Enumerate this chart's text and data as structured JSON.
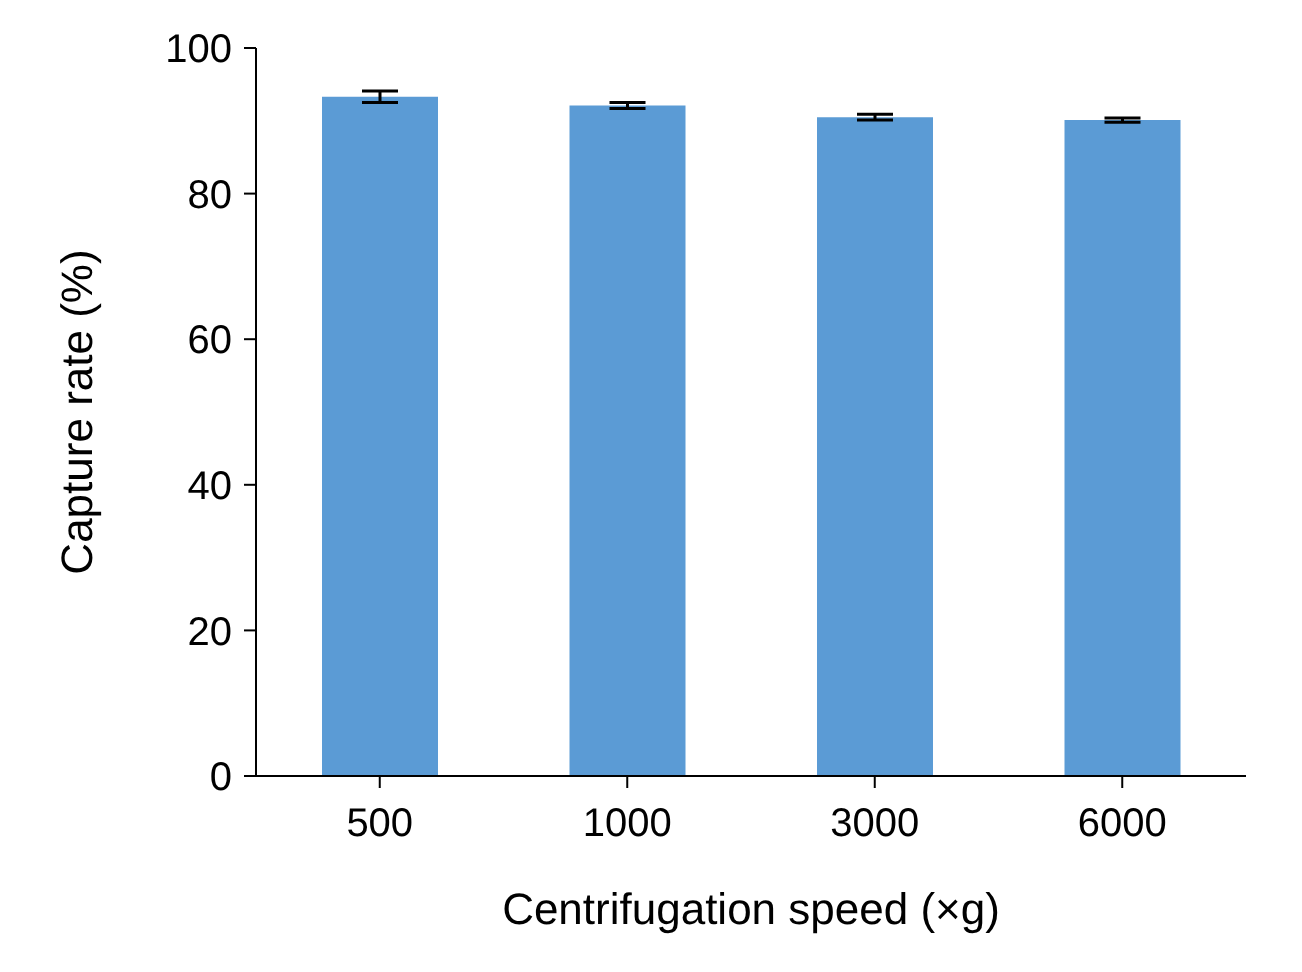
{
  "chart_data": {
    "type": "bar",
    "xlabel": "Centrifugation speed (×g)",
    "ylabel": "Capture rate (%)",
    "categories": [
      "500",
      "1000",
      "3000",
      "6000"
    ],
    "values": [
      93.3,
      92.1,
      90.5,
      90.1
    ],
    "errors": [
      0.8,
      0.4,
      0.4,
      0.3
    ],
    "color": "#5b9bd5",
    "ylim": [
      0,
      100
    ],
    "yticks": [
      0,
      20,
      40,
      60,
      80,
      100
    ],
    "grid": false,
    "legend": false
  }
}
